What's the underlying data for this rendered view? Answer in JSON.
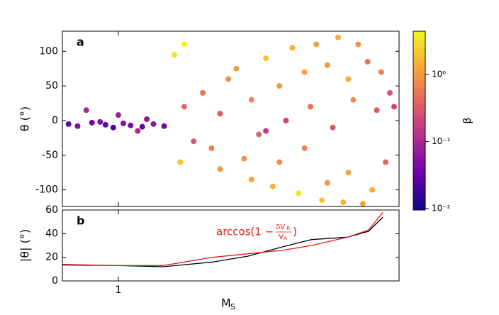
{
  "chart_data": [
    {
      "type": "scatter",
      "panel_label": "a",
      "ylabel": "θ (°)",
      "xlog": true,
      "xlim": [
        0.8,
        3.06
      ],
      "xticks": [
        1
      ],
      "ylim": [
        -124,
        129
      ],
      "yticks": [
        -100,
        -50,
        0,
        50,
        100
      ],
      "colormap": "plasma",
      "clog": true,
      "clabel": "β",
      "clim": [
        0.0095,
        4.4
      ],
      "cticks": [
        {
          "value": 0.01,
          "label": "10⁻²"
        },
        {
          "value": 0.1,
          "label": "10⁻¹"
        },
        {
          "value": 1,
          "label": "10⁰"
        }
      ],
      "x": [
        0.82,
        0.85,
        0.9,
        0.95,
        0.98,
        1.02,
        1.05,
        1.1,
        1.15,
        1.2,
        0.88,
        0.93,
        1.0,
        1.08,
        1.12,
        1.25,
        1.3,
        1.35,
        1.3,
        1.28,
        1.4,
        1.45,
        1.5,
        1.5,
        1.55,
        1.6,
        1.65,
        1.7,
        1.7,
        1.75,
        1.8,
        1.85,
        1.9,
        1.9,
        1.95,
        2.0,
        2.05,
        2.1,
        2.1,
        2.15,
        2.2,
        2.25,
        2.3,
        2.3,
        2.35,
        2.4,
        2.45,
        2.5,
        2.5,
        2.55,
        2.6,
        2.65,
        2.7,
        2.75,
        2.8,
        2.85,
        2.9,
        2.95,
        3.0,
        1.8
      ],
      "y": [
        -5,
        -8,
        -3,
        -6,
        -10,
        -4,
        -7,
        -9,
        -5,
        -8,
        15,
        -2,
        8,
        -15,
        2,
        95,
        110,
        -30,
        20,
        -60,
        40,
        -40,
        10,
        -70,
        60,
        75,
        -55,
        30,
        -85,
        -20,
        90,
        -95,
        50,
        -60,
        0,
        105,
        -105,
        70,
        -40,
        20,
        110,
        -115,
        80,
        -90,
        -10,
        120,
        -118,
        60,
        -75,
        30,
        110,
        -120,
        85,
        -100,
        15,
        70,
        -60,
        40,
        20,
        -15
      ],
      "beta": [
        0.03,
        0.05,
        0.04,
        0.03,
        0.02,
        0.05,
        0.04,
        0.03,
        0.06,
        0.04,
        0.1,
        0.05,
        0.08,
        0.1,
        0.06,
        3,
        4,
        0.3,
        0.4,
        2,
        0.5,
        0.6,
        0.3,
        1,
        0.8,
        1,
        0.9,
        0.7,
        1.2,
        0.4,
        2,
        1.5,
        0.9,
        0.8,
        0.2,
        1.5,
        3,
        1.2,
        0.7,
        0.5,
        1.1,
        2,
        1,
        0.9,
        0.3,
        1.3,
        1.5,
        1.4,
        1.2,
        0.8,
        0.9,
        1.2,
        0.5,
        1.4,
        0.3,
        0.6,
        0.4,
        0.3,
        0.2,
        0.15
      ]
    },
    {
      "type": "line",
      "panel_label": "b",
      "ylabel": "|θ| (°)",
      "xlabel": "M",
      "xlabel_sub": "S",
      "xlog": true,
      "xlim": [
        0.8,
        3.06
      ],
      "xticks": [
        1
      ],
      "ylim": [
        0,
        60
      ],
      "yticks": [
        0,
        20,
        40,
        60
      ],
      "annotation": {
        "prefix": "arccos(1 −",
        "num": "δV",
        "num_sub": "R",
        "den": "V",
        "den_sub": "A",
        "suffix": ")",
        "color": "#e41a1c"
      },
      "x": [
        0.8,
        1.0,
        1.195,
        1.456,
        1.677,
        1.93,
        2.16,
        2.49,
        2.71,
        2.87
      ],
      "series": [
        {
          "color": "#000000",
          "values": [
            13.5,
            13,
            12,
            16,
            21,
            29,
            35,
            37,
            42,
            54
          ]
        },
        {
          "color": "#e41a1c",
          "values": [
            14,
            13,
            13,
            20,
            23,
            26,
            30,
            37,
            43,
            58
          ]
        }
      ]
    }
  ]
}
